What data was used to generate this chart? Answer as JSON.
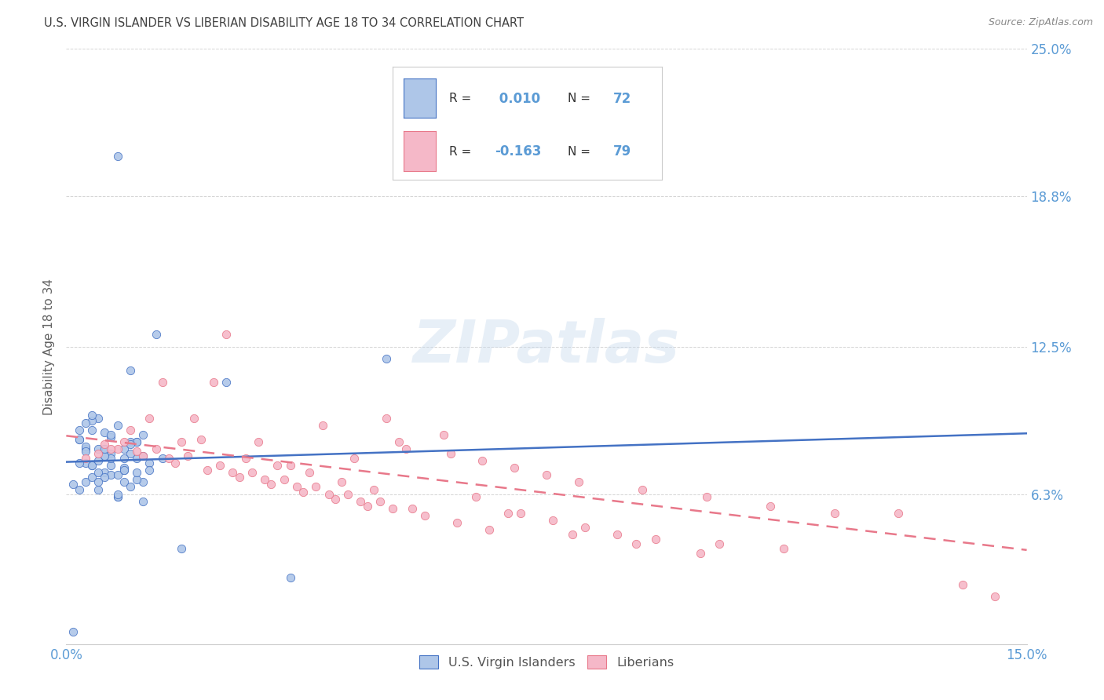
{
  "title": "U.S. VIRGIN ISLANDER VS LIBERIAN DISABILITY AGE 18 TO 34 CORRELATION CHART",
  "source": "Source: ZipAtlas.com",
  "ylabel": "Disability Age 18 to 34",
  "xlim": [
    0.0,
    0.15
  ],
  "ylim": [
    0.0,
    0.25
  ],
  "xticks": [
    0.0,
    0.15
  ],
  "xticklabels": [
    "0.0%",
    "15.0%"
  ],
  "yticks": [
    0.0,
    0.063,
    0.125,
    0.188,
    0.25
  ],
  "yticklabels": [
    "",
    "6.3%",
    "12.5%",
    "18.8%",
    "25.0%"
  ],
  "watermark": "ZIPatlas",
  "r1_val": "0.010",
  "n1_val": "72",
  "r2_val": "-0.163",
  "n2_val": "79",
  "series1_color": "#aec6e8",
  "series2_color": "#f5b8c8",
  "line1_color": "#4472c4",
  "line2_color": "#e8788a",
  "tick_color": "#5b9bd5",
  "grid_color": "#d0d0d0",
  "title_color": "#404040",
  "source_color": "#888888",
  "background_color": "#ffffff",
  "series1_x": [
    0.008,
    0.014,
    0.003,
    0.007,
    0.01,
    0.005,
    0.012,
    0.006,
    0.015,
    0.009,
    0.004,
    0.011,
    0.002,
    0.007,
    0.013,
    0.006,
    0.009,
    0.003,
    0.011,
    0.005,
    0.008,
    0.01,
    0.004,
    0.007,
    0.012,
    0.006,
    0.009,
    0.003,
    0.005,
    0.011,
    0.002,
    0.008,
    0.013,
    0.006,
    0.01,
    0.004,
    0.007,
    0.002,
    0.009,
    0.005,
    0.011,
    0.003,
    0.006,
    0.008,
    0.012,
    0.004,
    0.007,
    0.01,
    0.002,
    0.005,
    0.009,
    0.003,
    0.006,
    0.011,
    0.004,
    0.008,
    0.001,
    0.007,
    0.01,
    0.003,
    0.005,
    0.009,
    0.002,
    0.006,
    0.012,
    0.004,
    0.008,
    0.001,
    0.018,
    0.025,
    0.035,
    0.05
  ],
  "series1_y": [
    0.205,
    0.13,
    0.068,
    0.075,
    0.115,
    0.095,
    0.088,
    0.082,
    0.078,
    0.073,
    0.07,
    0.085,
    0.09,
    0.08,
    0.076,
    0.072,
    0.068,
    0.082,
    0.078,
    0.065,
    0.062,
    0.085,
    0.075,
    0.071,
    0.068,
    0.079,
    0.082,
    0.076,
    0.072,
    0.069,
    0.065,
    0.062,
    0.073,
    0.07,
    0.066,
    0.09,
    0.078,
    0.086,
    0.074,
    0.068,
    0.072,
    0.083,
    0.079,
    0.063,
    0.06,
    0.094,
    0.087,
    0.08,
    0.076,
    0.082,
    0.078,
    0.093,
    0.089,
    0.085,
    0.075,
    0.071,
    0.067,
    0.088,
    0.084,
    0.081,
    0.077,
    0.073,
    0.086,
    0.082,
    0.079,
    0.096,
    0.092,
    0.005,
    0.04,
    0.11,
    0.028,
    0.12
  ],
  "series2_x": [
    0.005,
    0.01,
    0.015,
    0.02,
    0.025,
    0.03,
    0.035,
    0.04,
    0.045,
    0.05,
    0.008,
    0.013,
    0.018,
    0.023,
    0.028,
    0.033,
    0.038,
    0.043,
    0.048,
    0.053,
    0.003,
    0.007,
    0.012,
    0.017,
    0.022,
    0.027,
    0.032,
    0.037,
    0.042,
    0.047,
    0.052,
    0.06,
    0.065,
    0.07,
    0.075,
    0.08,
    0.09,
    0.1,
    0.11,
    0.12,
    0.006,
    0.011,
    0.016,
    0.021,
    0.026,
    0.031,
    0.036,
    0.041,
    0.046,
    0.051,
    0.056,
    0.061,
    0.066,
    0.071,
    0.076,
    0.081,
    0.086,
    0.092,
    0.102,
    0.112,
    0.009,
    0.014,
    0.019,
    0.024,
    0.029,
    0.034,
    0.039,
    0.044,
    0.049,
    0.054,
    0.059,
    0.064,
    0.069,
    0.079,
    0.089,
    0.099,
    0.13,
    0.14,
    0.145
  ],
  "series2_y": [
    0.08,
    0.09,
    0.11,
    0.095,
    0.13,
    0.085,
    0.075,
    0.092,
    0.078,
    0.095,
    0.082,
    0.095,
    0.085,
    0.11,
    0.078,
    0.075,
    0.072,
    0.068,
    0.065,
    0.082,
    0.078,
    0.082,
    0.079,
    0.076,
    0.073,
    0.07,
    0.067,
    0.064,
    0.061,
    0.058,
    0.085,
    0.08,
    0.077,
    0.074,
    0.071,
    0.068,
    0.065,
    0.062,
    0.058,
    0.055,
    0.084,
    0.081,
    0.078,
    0.086,
    0.072,
    0.069,
    0.066,
    0.063,
    0.06,
    0.057,
    0.054,
    0.051,
    0.048,
    0.055,
    0.052,
    0.049,
    0.046,
    0.044,
    0.042,
    0.04,
    0.085,
    0.082,
    0.079,
    0.075,
    0.072,
    0.069,
    0.066,
    0.063,
    0.06,
    0.057,
    0.088,
    0.062,
    0.055,
    0.046,
    0.042,
    0.038,
    0.055,
    0.025,
    0.02
  ],
  "line1_slope": 0.08,
  "line1_intercept": 0.0765,
  "line2_slope": -0.32,
  "line2_intercept": 0.0875
}
